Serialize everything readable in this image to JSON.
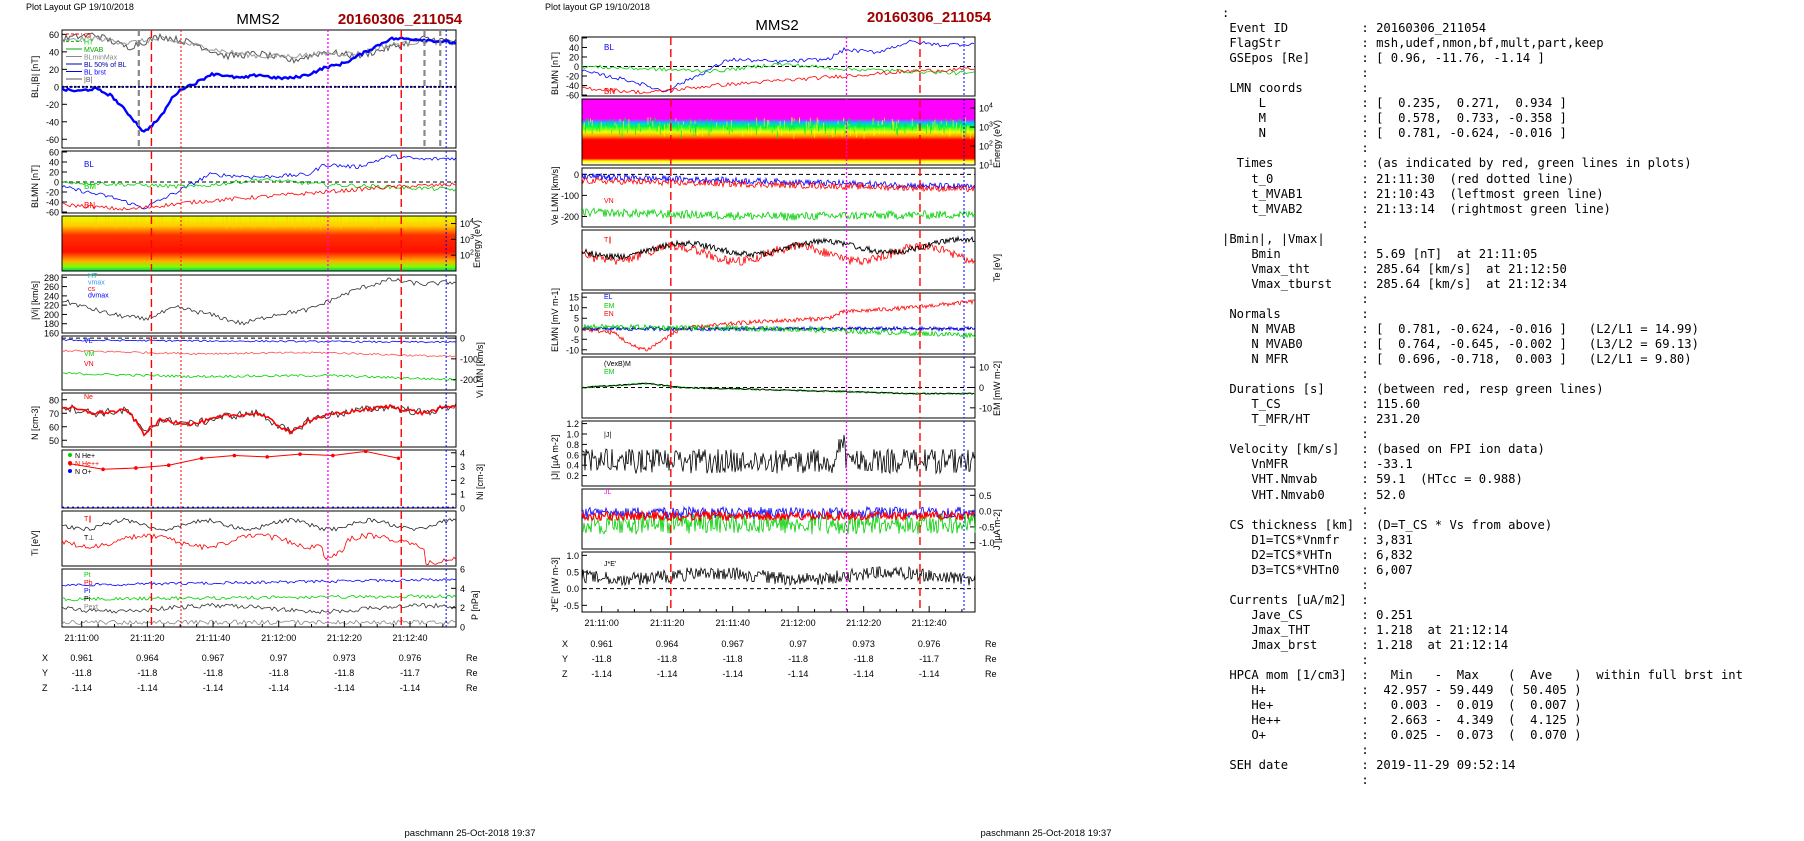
{
  "left_figure": {
    "corner_label": "Plot Layout GP 19/10/2018",
    "spacecraft": "MMS2",
    "event": "20160306_211054",
    "footer": "paschmann 25-Oct-2018 19:37",
    "time_ticks": [
      "21:11:00",
      "21:11:20",
      "21:11:40",
      "21:12:00",
      "21:12:20",
      "21:12:40"
    ],
    "pos_rows": [
      {
        "label": "X",
        "values": [
          "0.961",
          "0.964",
          "0.967",
          "0.97",
          "0.973",
          "0.976"
        ],
        "unit": "Re"
      },
      {
        "label": "Y",
        "values": [
          "-11.8",
          "-11.8",
          "-11.8",
          "-11.8",
          "-11.8",
          "-11.7"
        ],
        "unit": "Re"
      },
      {
        "label": "Z",
        "values": [
          "-1.14",
          "-1.14",
          "-1.14",
          "-1.14",
          "-1.14",
          "-1.14"
        ],
        "unit": "Re"
      }
    ]
  },
  "right_figure": {
    "corner_label": "Plot layout GP 19/10/2018",
    "spacecraft": "MMS2",
    "event": "20160306_211054",
    "footer": "paschmann 25-Oct-2018 19:37",
    "time_ticks": [
      "21:11:00",
      "21:11:20",
      "21:11:40",
      "21:12:00",
      "21:12:20",
      "21:12:40"
    ],
    "pos_rows": [
      {
        "label": "X",
        "values": [
          "0.961",
          "0.964",
          "0.967",
          "0.97",
          "0.973",
          "0.976"
        ],
        "unit": "Re"
      },
      {
        "label": "Y",
        "values": [
          "-11.8",
          "-11.8",
          "-11.8",
          "-11.8",
          "-11.8",
          "-11.7"
        ],
        "unit": "Re"
      },
      {
        "label": "Z",
        "values": [
          "-1.14",
          "-1.14",
          "-1.14",
          "-1.14",
          "-1.14",
          "-1.14"
        ],
        "unit": "Re"
      }
    ]
  },
  "info_lines": [
    ":",
    " Event ID          : 20160306_211054",
    " FlagStr           : msh,udef,nmon,bf,mult,part,keep",
    " GSEpos [Re]       : [ 0.96, -11.76, -1.14 ]",
    "                   :",
    " LMN coords        :",
    "     L             : [  0.235,  0.271,  0.934 ]",
    "     M             : [  0.578,  0.733, -0.358 ]",
    "     N             : [  0.781, -0.624, -0.016 ]",
    "                   :",
    "  Times            : (as indicated by red, green lines in plots)",
    "    t_0            : 21:11:30  (red dotted line)",
    "    t_MVAB1        : 21:10:43  (leftmost green line)",
    "    t_MVAB2        : 21:13:14  (rightmost green line)",
    "                   :",
    "|Bmin|, |Vmax|     :",
    "    Bmin           : 5.69 [nT]  at 21:11:05",
    "    Vmax_tht       : 285.64 [km/s]  at 21:12:50",
    "    Vmax_tburst    : 285.64 [km/s]  at 21:12:34",
    "                   :",
    " Normals           :",
    "    N MVAB         : [  0.781, -0.624, -0.016 ]   (L2/L1 = 14.99)",
    "    N MVAB0        : [  0.764, -0.645, -0.002 ]   (L3/L2 = 69.13)",
    "    N MFR          : [  0.696, -0.718,  0.003 ]   (L2/L1 = 9.80)",
    "                   :",
    " Durations [s]     : (between red, resp green lines)",
    "    T_CS           : 115.60",
    "    T_MFR/HT       : 231.20",
    "                   :",
    " Velocity [km/s]   : (based on FPI ion data)",
    "    VnMFR          : -33.1",
    "    VHT.Nmvab      : 59.1  (HTcc = 0.988)",
    "    VHT.Nmvab0     : 52.0",
    "                   :",
    " CS thickness [km] : (D=T_CS * Vs from above)",
    "    D1=TCS*Vnmfr   : 3,831",
    "    D2=TCS*VHTn    : 6,832",
    "    D3=TCS*VHTn0   : 6,007",
    "                   :",
    " Currents [uA/m2]  :",
    "    Jave_CS        : 0.251",
    "    Jmax_THT       : 1.218  at 21:12:14",
    "    Jmax_brst      : 1.218  at 21:12:14",
    "                   :",
    " HPCA mom [1/cm3]  :   Min   -  Max    (  Ave   )  within full brst int",
    "    H+             :  42.957 - 59.449  ( 50.405 )",
    "    He+            :   0.003 -  0.019  (  0.007 )",
    "    He++           :   2.663 -  4.349  (  4.125 )",
    "    O+             :   0.025 -  0.073  (  0.070 )",
    "                   :",
    " SEH date          : 2019-11-29 09:52:14",
    "                   :"
  ],
  "colors": {
    "title_red": "#a00000",
    "red": "#ff0000",
    "green": "#00d000",
    "blue": "#0000ff",
    "magenta": "#ff00ff",
    "gray": "#888888"
  },
  "chart_data": [
    {
      "type": "line",
      "title": "MMS2 20160306_211054",
      "x_range": [
        "21:10:54",
        "21:12:54"
      ],
      "panels": [
        {
          "id": "L1",
          "ylabel": "B_L, |B| [nT]",
          "yticks": [
            "60",
            "40",
            "20",
            "0",
            "-20",
            "-40",
            "-60"
          ],
          "ylim": [
            -70,
            65
          ],
          "legend": [
            "cs",
            "HT",
            "MVAB",
            "BLminMax",
            "BL 50% of BL",
            "BL brst",
            "|B|"
          ],
          "series": [
            {
              "name": "BL brst",
              "x_s": [
                0,
                10,
                20,
                30,
                40,
                50,
                60,
                68,
                75,
                80,
                85,
                90,
                95,
                100,
                110,
                120,
                130,
                140,
                150,
                160,
                170,
                175,
                180,
                190,
                200,
                210,
                220,
                230,
                240
              ],
              "y": [
                -3,
                -5,
                -2,
                -10,
                -30,
                -52,
                -35,
                -10,
                0,
                3,
                8,
                14,
                15,
                12,
                10,
                14,
                10,
                10,
                14,
                22,
                26,
                30,
                35,
                45,
                55,
                55,
                54,
                52,
                50
              ]
            }
          ]
        },
        {
          "id": "L2",
          "ylabel": "B_LMN [nT]",
          "yticks": [
            "60",
            "40",
            "20",
            "0",
            "-20",
            "-40",
            "-60"
          ],
          "ylim": [
            -62,
            62
          ],
          "legend": [
            "BL",
            "BM",
            "BN"
          ],
          "series": [
            {
              "name": "BL",
              "x_s": [
                0,
                30,
                50,
                70,
                90,
                120,
                150,
                160,
                180,
                200,
                220,
                240
              ],
              "y": [
                -10,
                -30,
                -52,
                -20,
                15,
                10,
                15,
                35,
                30,
                52,
                45,
                48
              ]
            },
            {
              "name": "BM",
              "x_s": [
                0,
                40,
                80,
                120,
                160,
                200,
                240
              ],
              "y": [
                0,
                -5,
                -10,
                5,
                -5,
                -10,
                -15
              ]
            },
            {
              "name": "BN",
              "x_s": [
                0,
                40,
                80,
                120,
                160,
                200,
                240
              ],
              "y": [
                -45,
                -55,
                -40,
                -30,
                -20,
                -10,
                -5
              ]
            }
          ]
        },
        {
          "id": "L3",
          "ylabel": "Energy (eV)",
          "yticks": [
            "10^4",
            "10^3",
            "10^2"
          ],
          "ylim": [
            10,
            30000
          ]
        },
        {
          "id": "L4",
          "ylabel": "|V_i| [km/s]",
          "yticks": [
            "280",
            "260",
            "240",
            "220",
            "200",
            "180",
            "160"
          ],
          "ylim": [
            160,
            285
          ],
          "legend": [
            "HT",
            "vmax",
            "cs",
            "dvmax"
          ],
          "series": [
            {
              "name": "|Vi|",
              "x_s": [
                0,
                30,
                50,
                70,
                90,
                110,
                130,
                150,
                170,
                180,
                200,
                220,
                240
              ],
              "y": [
                230,
                200,
                190,
                215,
                200,
                180,
                200,
                210,
                240,
                255,
                275,
                265,
                270
              ]
            }
          ]
        },
        {
          "id": "L5",
          "ylabel": "V_i LMN [km/s]",
          "yticks": [
            "0",
            "-100",
            "-200"
          ],
          "ylim": [
            -250,
            10
          ],
          "legend": [
            "VL",
            "VM",
            "VN"
          ]
        },
        {
          "id": "L6",
          "ylabel": "N [cm^-3]",
          "yticks": [
            "80",
            "70",
            "60",
            "50"
          ],
          "ylim": [
            45,
            85
          ],
          "legend": [
            "Ne"
          ],
          "series": [
            {
              "name": "Ne",
              "x_s": [
                0,
                20,
                40,
                50,
                60,
                80,
                100,
                120,
                140,
                150,
                160,
                180,
                200,
                220,
                240
              ],
              "y": [
                75,
                70,
                72,
                55,
                65,
                62,
                68,
                70,
                55,
                65,
                68,
                72,
                75,
                70,
                76
              ]
            }
          ]
        },
        {
          "id": "L7",
          "ylabel": "N_i [cm^-3]",
          "yticks": [
            "4",
            "3",
            "2",
            "1",
            "0"
          ],
          "ylim": [
            0,
            4.2
          ],
          "legend": [
            "N He+",
            "N He++",
            "N O+"
          ],
          "series": [
            {
              "name": "N He++",
              "x_s": [
                5,
                25,
                45,
                65,
                85,
                105,
                125,
                145,
                165,
                185,
                205
              ],
              "y": [
                3.2,
                2.8,
                2.9,
                3.1,
                3.6,
                3.8,
                3.7,
                3.9,
                3.8,
                4.1,
                3.6
              ]
            }
          ]
        },
        {
          "id": "L8",
          "ylabel": "T_i [eV]",
          "legend": [
            "T∥",
            "T⊥"
          ]
        },
        {
          "id": "L9",
          "ylabel": "P [nPa]",
          "yticks": [
            "6",
            "4",
            "2",
            "0"
          ],
          "ylim": [
            0,
            6
          ],
          "legend": [
            "Pt",
            "Pb",
            "Pi",
            "Pext"
          ]
        }
      ]
    },
    {
      "type": "line",
      "title": "MMS2 20160306_211054",
      "x_range": [
        "21:10:54",
        "21:12:54"
      ],
      "panels": [
        {
          "id": "R1",
          "ylabel": "B_LMN [nT]",
          "yticks": [
            "60",
            "40",
            "20",
            "0",
            "-20",
            "-40",
            "-60"
          ],
          "ylim": [
            -62,
            62
          ],
          "legend": [
            "BL",
            "BM",
            "BN"
          ]
        },
        {
          "id": "R2",
          "ylabel": "Energy (eV)",
          "yticks": [
            "10^4",
            "10^3",
            "10^2",
            "10^1"
          ],
          "ylim": [
            10,
            30000
          ]
        },
        {
          "id": "R3",
          "ylabel": "V_e LMN [km/s]",
          "yticks": [
            "0",
            "-100",
            "-200"
          ],
          "ylim": [
            -250,
            30
          ],
          "legend": [
            "VL",
            "VM",
            "VN"
          ]
        },
        {
          "id": "R4",
          "ylabel": "T_e [eV]",
          "legend": [
            "T∥",
            "T⊥"
          ]
        },
        {
          "id": "R5",
          "ylabel": "E_LMN [mV m^-1]",
          "yticks": [
            "15",
            "10",
            "5",
            "0",
            "-5",
            "-10"
          ],
          "ylim": [
            -12,
            17
          ],
          "legend": [
            "EL",
            "EM",
            "EN"
          ]
        },
        {
          "id": "R6",
          "ylabel": "E_M [mV m^-1]",
          "yticks": [
            "10",
            "0",
            "-10"
          ],
          "ylim": [
            -15,
            15
          ],
          "legend": [
            "(VexB)M",
            "EM"
          ]
        },
        {
          "id": "R7",
          "ylabel": "|J| [µA m^-2]",
          "yticks": [
            "1.2",
            "1.0",
            "0.8",
            "0.6",
            "0.4",
            "0.2"
          ],
          "ylim": [
            0,
            1.25
          ],
          "legend": [
            "|J|"
          ]
        },
        {
          "id": "R8",
          "ylabel": "J [µA m^-2]",
          "yticks": [
            "0.5",
            "0.0",
            "-0.5",
            "-1.0"
          ],
          "ylim": [
            -1.2,
            0.7
          ],
          "legend": [
            "JL",
            "JM",
            "JN"
          ]
        },
        {
          "id": "R9",
          "ylabel": "J*E' [nW m^-3]",
          "yticks": [
            "1.0",
            "0.5",
            "0.0",
            "-0.5"
          ],
          "ylim": [
            -0.7,
            1.1
          ],
          "legend": [
            "J*E'"
          ]
        }
      ]
    }
  ]
}
